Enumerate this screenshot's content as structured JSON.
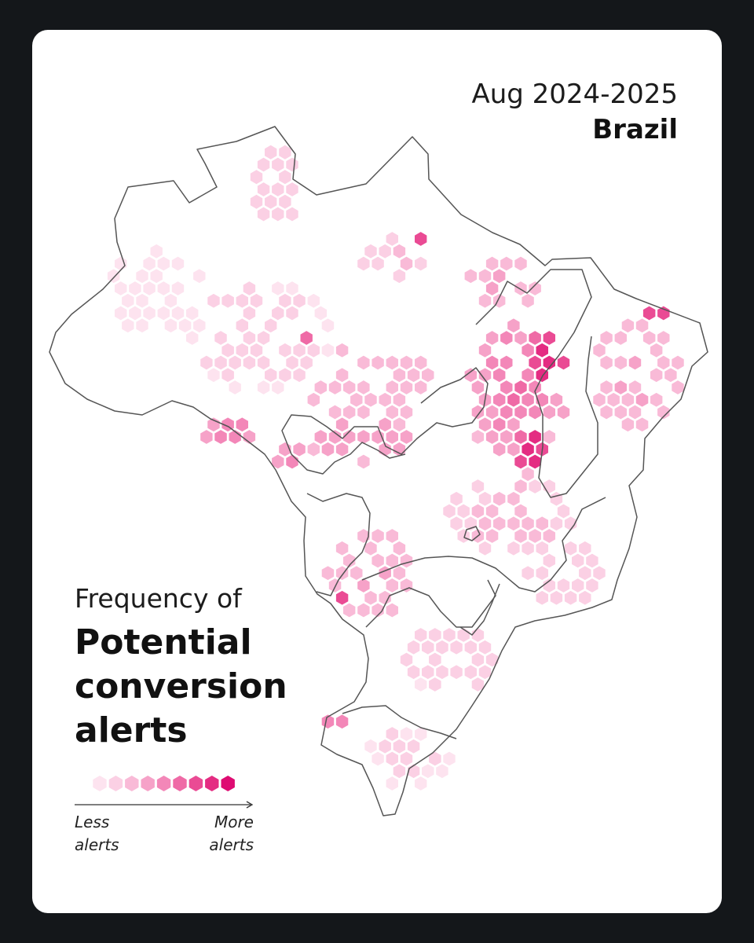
{
  "header": {
    "period": "Aug 2024-2025",
    "country": "Brazil"
  },
  "title": {
    "intro": "Frequency of",
    "metric_lines": [
      "Potential",
      "conversion",
      "alerts"
    ]
  },
  "legend": {
    "less_lines": [
      "Less",
      "alerts"
    ],
    "more_lines": [
      "More",
      "alerts"
    ],
    "levels": 9,
    "ramp": [
      "#fde3ef",
      "#fbd0e4",
      "#f9bad7",
      "#f6a2c8",
      "#f387b8",
      "#ef6aa6",
      "#ea4b94",
      "#e42c82",
      "#de0c72"
    ]
  },
  "map": {
    "region": "Brazil",
    "outline_color": "#555555",
    "hex_clusters": [
      {
        "id": "roraima",
        "intensity": 0.12
      },
      {
        "id": "amazon-west",
        "intensity": 0.06
      },
      {
        "id": "amazon-central",
        "intensity": 0.1
      },
      {
        "id": "manaus-hotspot",
        "intensity": 0.95
      },
      {
        "id": "amapa-para",
        "intensity": 0.22
      },
      {
        "id": "para-hotspot",
        "intensity": 1.0
      },
      {
        "id": "acre",
        "intensity": 0.55
      },
      {
        "id": "rondonia",
        "intensity": 0.5
      },
      {
        "id": "para-south",
        "intensity": 0.35
      },
      {
        "id": "mato-grosso",
        "intensity": 0.45
      },
      {
        "id": "mato-grosso-spot",
        "intensity": 0.9
      },
      {
        "id": "maranhao",
        "intensity": 0.38
      },
      {
        "id": "matopiba-core",
        "intensity": 0.6
      },
      {
        "id": "matopiba-hotspot",
        "intensity": 1.0
      },
      {
        "id": "tocantins-bahia",
        "intensity": 0.45
      },
      {
        "id": "bahia-west-hotspot",
        "intensity": 1.0
      },
      {
        "id": "northeast-coast",
        "intensity": 0.35
      },
      {
        "id": "ceara-hotspot",
        "intensity": 1.0
      },
      {
        "id": "central-south",
        "intensity": 0.25
      },
      {
        "id": "minas-gerais",
        "intensity": 0.18
      },
      {
        "id": "mato-grosso-do-sul",
        "intensity": 0.35
      },
      {
        "id": "pantanal-spot",
        "intensity": 0.85
      },
      {
        "id": "sao-paulo",
        "intensity": 0.1
      },
      {
        "id": "south",
        "intensity": 0.08
      },
      {
        "id": "southwest-tip",
        "intensity": 0.7
      }
    ]
  }
}
